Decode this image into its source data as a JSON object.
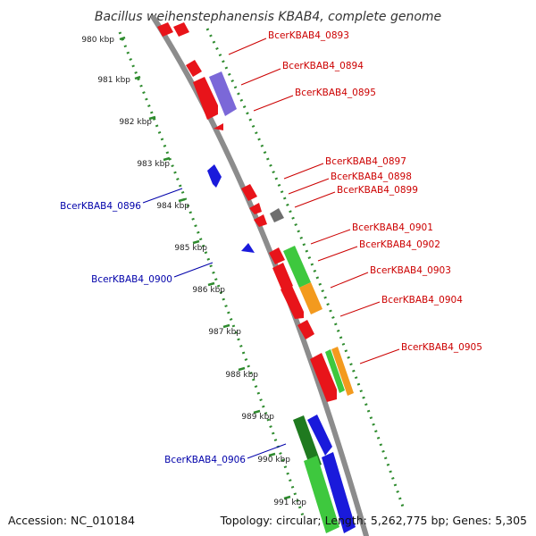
{
  "title": "Bacillus weihenstephanensis KBAB4, complete genome",
  "footer": {
    "accession": "Accession: NC_010184",
    "summary": "Topology: circular; Length: 5,262,775 bp; Genes: 5,305"
  },
  "colors": {
    "backbone": "#8c8c8c",
    "tick_ring": "#2e8b2e",
    "label_forward": "#cc0000",
    "label_reverse": "#0000aa",
    "gene_red": "#e8141a",
    "gene_purple": "#7b68d8",
    "gene_blue": "#1a1adb",
    "gene_green": "#3ec83e",
    "gene_orange": "#f39a1e",
    "gene_gray": "#6e6e6e",
    "gene_darkgreen": "#1f7a1f"
  },
  "kbp_ticks": [
    "980 kbp",
    "981 kbp",
    "982 kbp",
    "983 kbp",
    "984 kbp",
    "985 kbp",
    "986 kbp",
    "987 kbp",
    "988 kbp",
    "989 kbp",
    "990 kbp",
    "991 kbp"
  ],
  "gene_labels": [
    "BcerKBAB4_0893",
    "BcerKBAB4_0894",
    "BcerKBAB4_0895",
    "BcerKBAB4_0896",
    "BcerKBAB4_0897",
    "BcerKBAB4_0898",
    "BcerKBAB4_0899",
    "BcerKBAB4_0900",
    "BcerKBAB4_0901",
    "BcerKBAB4_0902",
    "BcerKBAB4_0903",
    "BcerKBAB4_0904",
    "BcerKBAB4_0905",
    "BcerKBAB4_0906"
  ]
}
